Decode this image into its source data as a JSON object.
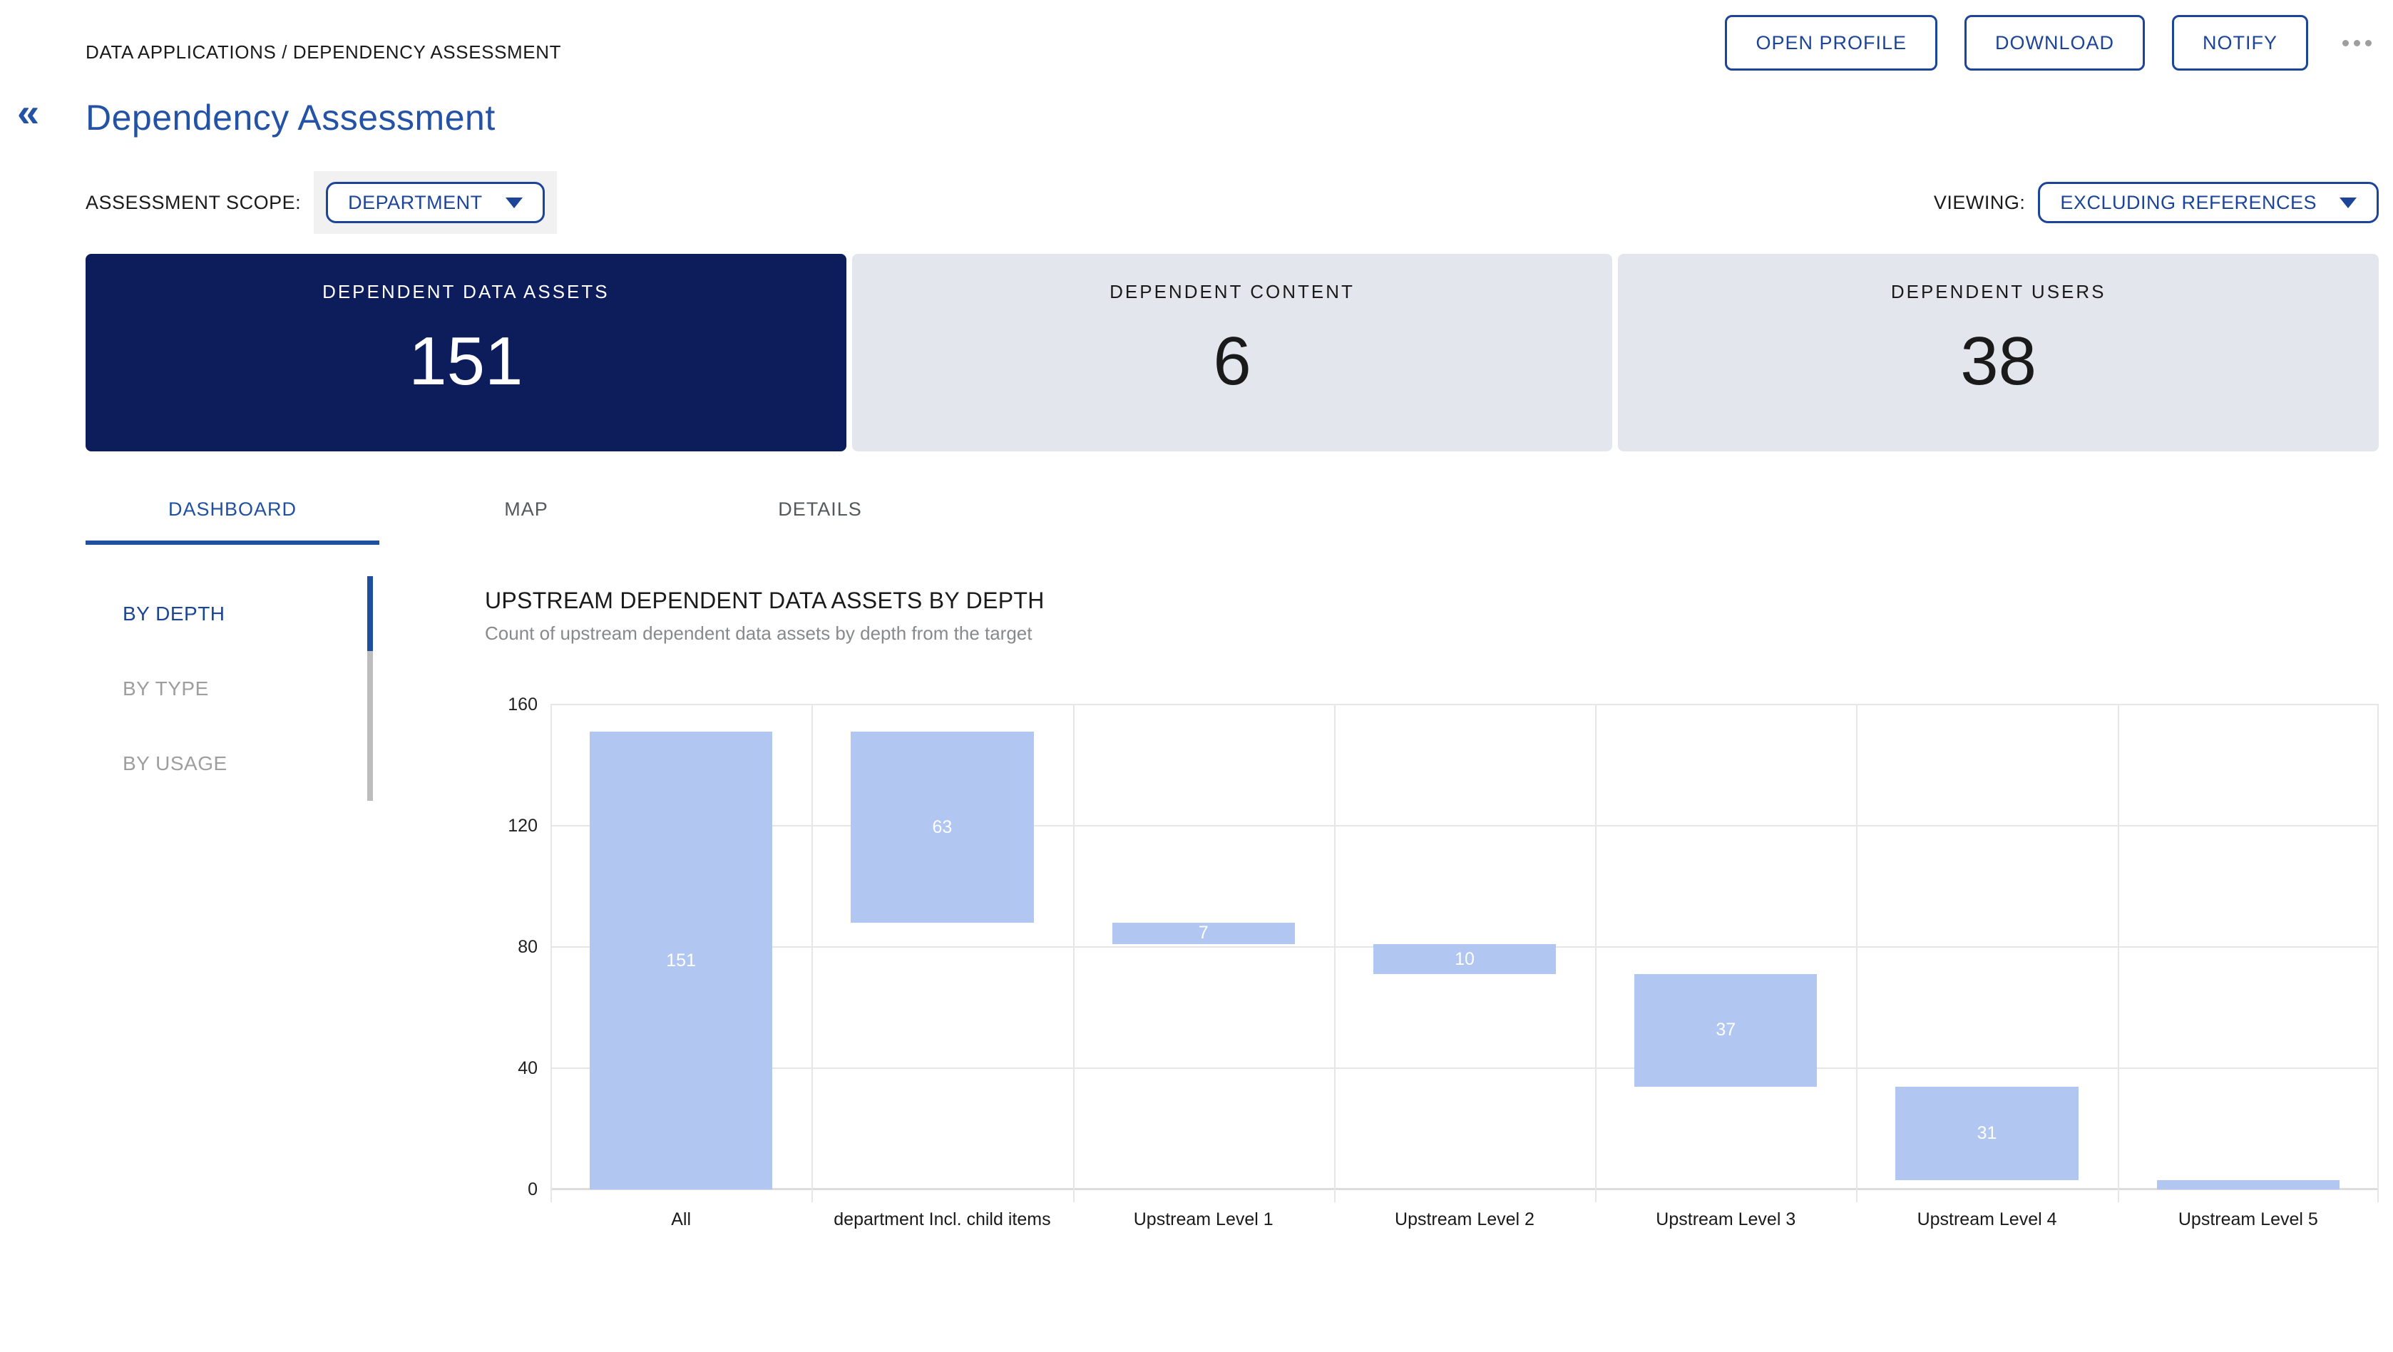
{
  "page": {
    "breadcrumb": "DATA APPLICATIONS / DEPENDENCY ASSESSMENT",
    "title": "Dependency Assessment",
    "back_glyph": "«"
  },
  "header_actions": {
    "buttons": [
      {
        "label": "OPEN PROFILE"
      },
      {
        "label": "DOWNLOAD"
      },
      {
        "label": "NOTIFY"
      }
    ],
    "more_icon": "ellipsis"
  },
  "controls": {
    "scope_label": "ASSESSMENT SCOPE:",
    "scope_value": "DEPARTMENT",
    "viewing_label": "VIEWING:",
    "viewing_value": "EXCLUDING REFERENCES"
  },
  "stat_cards": [
    {
      "label": "DEPENDENT DATA ASSETS",
      "value": "151",
      "selected": true
    },
    {
      "label": "DEPENDENT CONTENT",
      "value": "6",
      "selected": false
    },
    {
      "label": "DEPENDENT USERS",
      "value": "38",
      "selected": false
    }
  ],
  "tabs": [
    {
      "label": "DASHBOARD",
      "active": true
    },
    {
      "label": "MAP",
      "active": false
    },
    {
      "label": "DETAILS",
      "active": false
    }
  ],
  "side_nav": [
    {
      "label": "BY DEPTH",
      "active": true
    },
    {
      "label": "BY TYPE",
      "active": false
    },
    {
      "label": "BY USAGE",
      "active": false
    }
  ],
  "chart": {
    "title": "UPSTREAM DEPENDENT DATA ASSETS BY DEPTH",
    "subtitle": "Count of upstream dependent data assets by depth from the target"
  },
  "chart_data": {
    "type": "bar",
    "subtype": "waterfall",
    "title": "UPSTREAM DEPENDENT DATA ASSETS BY DEPTH",
    "categories": [
      "All",
      "department Incl. child items",
      "Upstream Level 1",
      "Upstream Level 2",
      "Upstream Level 3",
      "Upstream Level 4",
      "Upstream Level 5"
    ],
    "values": [
      151,
      63,
      7,
      10,
      37,
      31,
      3
    ],
    "segments": [
      [
        0,
        151
      ],
      [
        88,
        151
      ],
      [
        81,
        88
      ],
      [
        71,
        81
      ],
      [
        34,
        71
      ],
      [
        3,
        34
      ],
      [
        0,
        3
      ]
    ],
    "y_ticks": [
      0,
      40,
      80,
      120,
      160
    ],
    "ylim": [
      0,
      160
    ],
    "grid": true,
    "bar_color": "#b1c7f2",
    "bar_label_color": "#ffffff"
  },
  "colors": {
    "accent": "#1c4499",
    "title_blue": "#2453a6",
    "tab_active": "#2150a0",
    "indicator_blue": "#1d4ea0",
    "card_selected": "#0d1d5c",
    "card_bg": "#e3e6ed",
    "bar": "#b1c7f2",
    "grid": "#e6e6e6"
  },
  "icons": {
    "back": "double-chevron-left",
    "dropdown": "caret-down",
    "more": "ellipsis"
  }
}
